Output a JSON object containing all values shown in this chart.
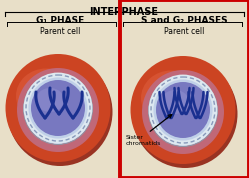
{
  "title": "INTERPHASE",
  "left_phase": "G₁ PHASE",
  "right_phase": "S and G₂ PHASES",
  "left_label": "Parent cell",
  "right_label": "Parent cell",
  "annotation": "Sister\nchromatids",
  "bg_color": "#e8dfc8",
  "cell_outer_color": "#cc4422",
  "cell_outer_color2": "#bb3311",
  "cell_mid_color": "#d06070",
  "cell_inner_color": "#c0d0e8",
  "nucleus_membrane_color": "#b8c8e0",
  "nucleus_color": "#7878c0",
  "nucleus_color2": "#9090d0",
  "chromosome_color": "#1a3090",
  "border_color": "#888888",
  "red_box_color": "#cc0000",
  "title_fontsize": 7,
  "label_fontsize": 5.5,
  "phase_fontsize": 6.5,
  "annot_fontsize": 4.5
}
